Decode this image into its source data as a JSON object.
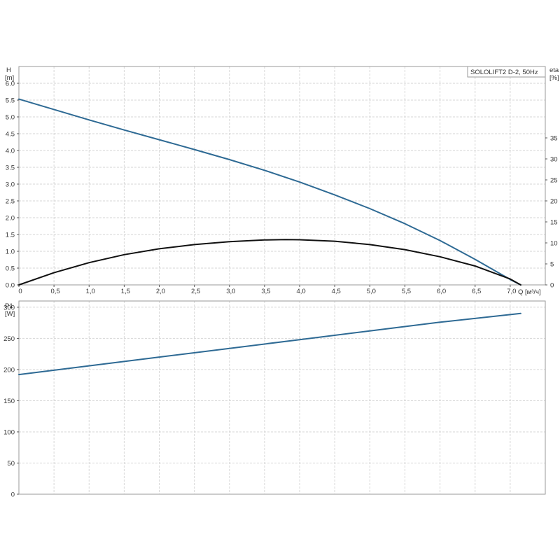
{
  "colors": {
    "head_curve": "#2e6a94",
    "eta_curve": "#111111",
    "power_curve": "#2e6a94"
  },
  "chart_data": [
    {
      "type": "line",
      "legend": "SOLOLIFT2 D-2, 50Hz",
      "legend_position": "top-right",
      "grid": true,
      "x_axis": {
        "unit_label": "Q [м³/ч]",
        "range": [
          0,
          7.5
        ],
        "ticks": [
          0,
          0.5,
          1.0,
          1.5,
          2.0,
          2.5,
          3.0,
          3.5,
          4.0,
          4.5,
          5.0,
          5.5,
          6.0,
          6.5,
          7.0
        ],
        "tick_labels": [
          "0",
          "0,5",
          "1,0",
          "1,5",
          "2,0",
          "2,5",
          "3,0",
          "3,5",
          "4,0",
          "4,5",
          "5,0",
          "5,5",
          "6,0",
          "6,5",
          "7,0"
        ]
      },
      "y_axis_left": {
        "label_line1": "H",
        "label_line2": "[m]",
        "range": [
          0,
          6.5
        ],
        "ticks": [
          0,
          0.5,
          1.0,
          1.5,
          2.0,
          2.5,
          3.0,
          3.5,
          4.0,
          4.5,
          5.0,
          5.5,
          6.0
        ],
        "tick_labels": [
          "0.0",
          "0.5",
          "1.0",
          "1.5",
          "2.0",
          "2.5",
          "3.0",
          "3.5",
          "4.0",
          "4.5",
          "5.0",
          "5.5",
          "6.0"
        ]
      },
      "y_axis_right": {
        "label_line1": "eta",
        "label_line2": "[%]",
        "range": [
          0,
          52
        ],
        "ticks": [
          0,
          5,
          10,
          15,
          20,
          25,
          30,
          35
        ],
        "tick_labels": [
          "0",
          "5",
          "10",
          "15",
          "20",
          "25",
          "30",
          "35"
        ]
      },
      "series": [
        {
          "axis": "left",
          "x": [
            0,
            0.5,
            1.0,
            1.5,
            2.0,
            2.5,
            3.0,
            3.5,
            4.0,
            4.5,
            5.0,
            5.5,
            6.0,
            6.5,
            7.0,
            7.15
          ],
          "y": [
            5.53,
            5.22,
            4.91,
            4.61,
            4.32,
            4.03,
            3.73,
            3.41,
            3.06,
            2.68,
            2.27,
            1.82,
            1.32,
            0.76,
            0.16,
            0.0
          ]
        },
        {
          "axis": "right",
          "x": [
            0,
            0.5,
            1.0,
            1.5,
            2.0,
            2.5,
            3.0,
            3.5,
            3.8,
            4.0,
            4.5,
            5.0,
            5.5,
            6.0,
            6.5,
            7.0,
            7.15
          ],
          "y": [
            0,
            2.9,
            5.3,
            7.2,
            8.6,
            9.6,
            10.3,
            10.7,
            10.8,
            10.75,
            10.4,
            9.6,
            8.4,
            6.7,
            4.5,
            1.4,
            0
          ]
        }
      ]
    },
    {
      "type": "line",
      "grid": true,
      "x_axis": {
        "range": [
          0,
          7.5
        ],
        "ticks": [
          0,
          0.5,
          1.0,
          1.5,
          2.0,
          2.5,
          3.0,
          3.5,
          4.0,
          4.5,
          5.0,
          5.5,
          6.0,
          6.5,
          7.0
        ]
      },
      "y_axis_left": {
        "label_line1": "P1",
        "label_line2": "[W]",
        "range": [
          0,
          310
        ],
        "ticks": [
          0,
          50,
          100,
          150,
          200,
          250,
          300
        ],
        "tick_labels": [
          "0",
          "50",
          "100",
          "150",
          "200",
          "250",
          "300"
        ]
      },
      "series": [
        {
          "axis": "left",
          "x": [
            0,
            1.0,
            2.0,
            3.0,
            4.0,
            5.0,
            6.0,
            7.15
          ],
          "y": [
            192,
            206,
            220,
            234,
            248,
            262,
            276,
            290
          ]
        }
      ]
    }
  ]
}
